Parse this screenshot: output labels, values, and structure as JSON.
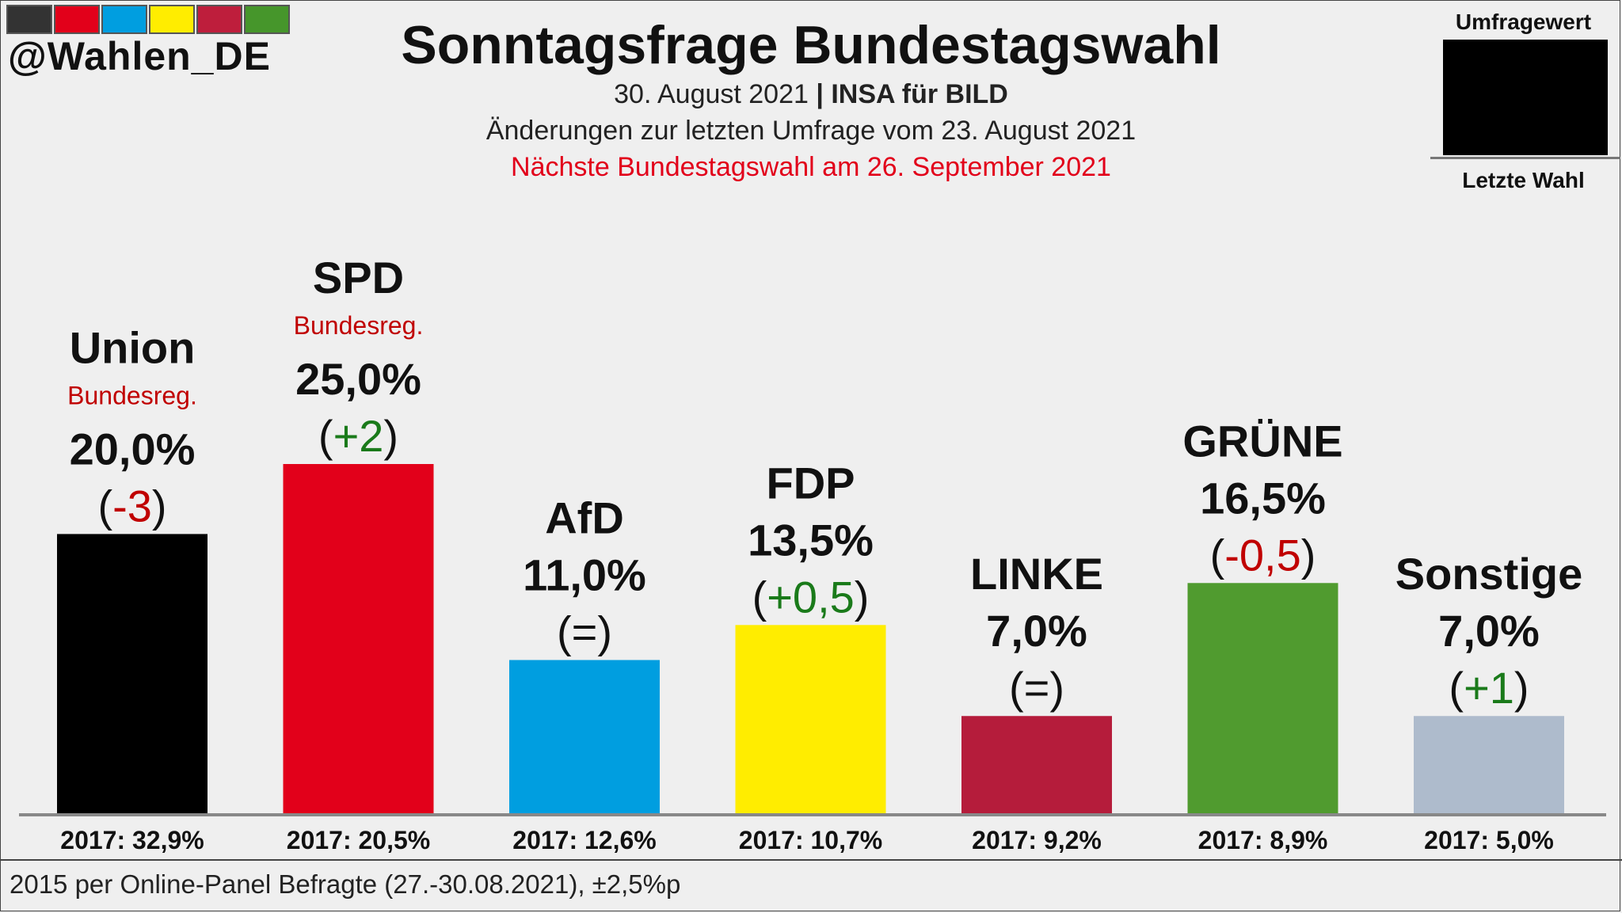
{
  "header": {
    "handle": "@Wahlen_DE",
    "title": "Sonntagsfrage Bundestagswahl",
    "date": "30. August 2021",
    "separator": " | ",
    "institute": "INSA für BILD",
    "change_note": "Änderungen zur letzten Umfrage vom 23. August 2021",
    "next_election": "Nächste Bundestagswahl am 26. September 2021"
  },
  "logo_colors": [
    "#333333",
    "#e2001a",
    "#009ee0",
    "#ffed00",
    "#be1e3c",
    "#46962b"
  ],
  "legend": {
    "top": "Umfragewert",
    "bottom": "Letzte Wahl"
  },
  "footnote": "2015 per Online-Panel Befragte (27.-30.08.2021), ±2,5%p",
  "chart_data": {
    "type": "bar",
    "title": "Sonntagsfrage Bundestagswahl",
    "categories": [
      "Union",
      "SPD",
      "AfD",
      "FDP",
      "LINKE",
      "GRÜNE",
      "Sonstige"
    ],
    "values": [
      20.0,
      25.0,
      11.0,
      13.5,
      7.0,
      16.5,
      7.0
    ],
    "value_labels": [
      "20,0%",
      "25,0%",
      "11,0%",
      "13,5%",
      "7,0%",
      "16,5%",
      "7,0%"
    ],
    "changes": [
      "-3",
      "+2",
      "=",
      "+0,5",
      "=",
      "-0,5",
      "+1"
    ],
    "government_label": "Bundesreg.",
    "government": [
      true,
      true,
      false,
      false,
      false,
      false,
      false
    ],
    "previous_labels": [
      "2017: 32,9%",
      "2017: 20,5%",
      "2017: 12,6%",
      "2017: 10,7%",
      "2017: 9,2%",
      "2017: 8,9%",
      "2017: 5,0%"
    ],
    "previous_values": [
      32.9,
      20.5,
      12.6,
      10.7,
      9.2,
      8.9,
      5.0
    ],
    "colors": [
      "#000000",
      "#e2001a",
      "#009ee0",
      "#ffed00",
      "#b51c3b",
      "#509b2f",
      "#aebbcc"
    ],
    "change_colors": {
      "positive": "#1a7a1a",
      "negative": "#c00000",
      "neutral": "#111111"
    },
    "ylim": [
      0,
      25
    ]
  }
}
